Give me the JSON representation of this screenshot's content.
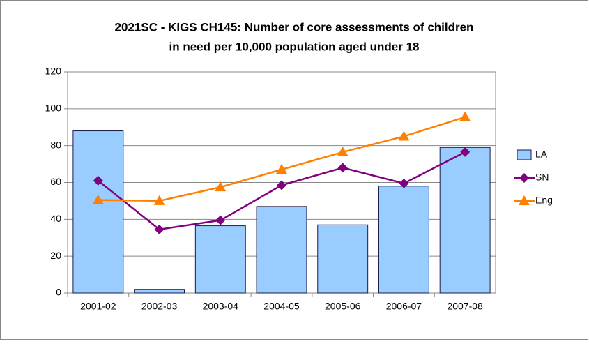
{
  "chart_data": {
    "type": "bar-line",
    "title": [
      "2021SC - KIGS CH145: Number of core assessments of children",
      "in need per 10,000 population aged under 18"
    ],
    "categories": [
      "2001-02",
      "2002-03",
      "2003-04",
      "2004-05",
      "2005-06",
      "2006-07",
      "2007-08"
    ],
    "series": [
      {
        "name": "LA",
        "type": "bar",
        "color": "#99ccff",
        "values": [
          88,
          2,
          36.5,
          47,
          37,
          58,
          79
        ]
      },
      {
        "name": "SN",
        "type": "line",
        "marker": "diamond",
        "color": "#800080",
        "values": [
          61,
          34.5,
          39.5,
          58.5,
          68,
          59.5,
          76.5
        ]
      },
      {
        "name": "Eng",
        "type": "line",
        "marker": "triangle",
        "color": "#ff8000",
        "values": [
          50.5,
          50,
          57.5,
          67,
          76.5,
          85,
          95.5
        ]
      }
    ],
    "ylim": [
      0,
      120
    ],
    "yticks": [
      0,
      20,
      40,
      60,
      80,
      100,
      120
    ],
    "grid": true,
    "legend": "right"
  }
}
